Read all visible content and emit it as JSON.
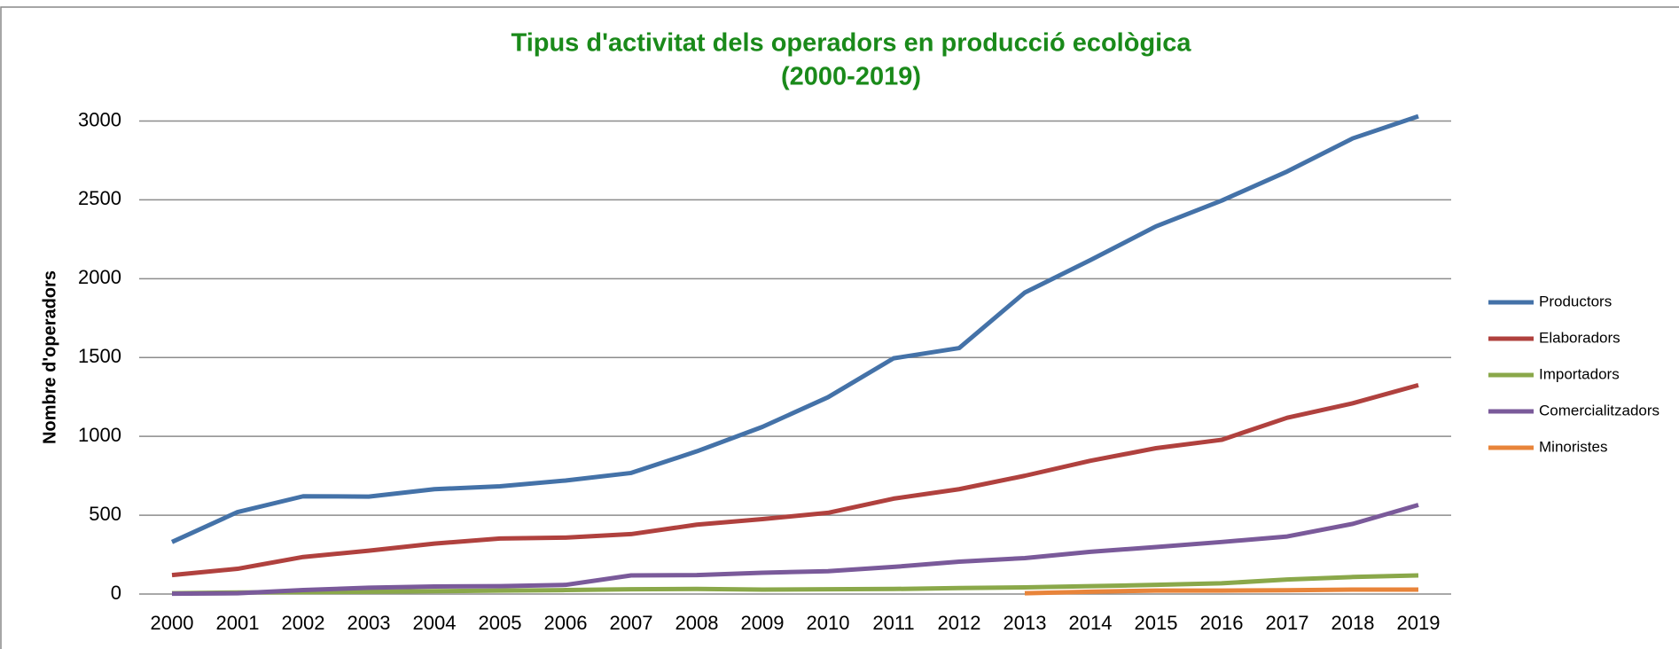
{
  "chart_data": {
    "type": "line",
    "title": [
      "Tipus d'activitat dels operadors en producció ecològica",
      "(2000-2019)"
    ],
    "y_label": "Nombre d'operadors",
    "categories": [
      "2000",
      "2001",
      "2002",
      "2003",
      "2004",
      "2005",
      "2006",
      "2007",
      "2008",
      "2009",
      "2010",
      "2011",
      "2012",
      "2013",
      "2014",
      "2015",
      "2016",
      "2017",
      "2018",
      "2019"
    ],
    "series": [
      {
        "name": "Productors",
        "color": "#4472a8",
        "values": [
          330,
          520,
          620,
          618,
          665,
          683,
          720,
          768,
          905,
          1060,
          1248,
          1495,
          1560,
          1912,
          2118,
          2332,
          2495,
          2680,
          2890,
          3030
        ]
      },
      {
        "name": "Elaboradors",
        "color": "#b0413e",
        "values": [
          120,
          160,
          235,
          275,
          320,
          352,
          358,
          380,
          440,
          475,
          515,
          605,
          665,
          750,
          845,
          925,
          978,
          1118,
          1210,
          1325
        ]
      },
      {
        "name": "Importadors",
        "color": "#8aa84a",
        "values": [
          5,
          10,
          12,
          15,
          18,
          22,
          25,
          30,
          32,
          28,
          30,
          32,
          38,
          42,
          50,
          58,
          68,
          92,
          108,
          118
        ]
      },
      {
        "name": "Comercialitzadors",
        "color": "#7a5a9a",
        "values": [
          2,
          5,
          25,
          40,
          48,
          50,
          58,
          118,
          120,
          135,
          145,
          172,
          205,
          228,
          268,
          298,
          330,
          365,
          445,
          565
        ]
      },
      {
        "name": "Minoristes",
        "color": "#e8843a",
        "values": [
          null,
          null,
          null,
          null,
          null,
          null,
          null,
          null,
          null,
          null,
          null,
          null,
          null,
          5,
          15,
          22,
          22,
          24,
          28,
          28
        ]
      }
    ],
    "ylim": [
      0,
      3000
    ],
    "yticks": [
      0,
      500,
      1000,
      1500,
      2000,
      2500,
      3000
    ],
    "grid": true,
    "legend": "right"
  }
}
